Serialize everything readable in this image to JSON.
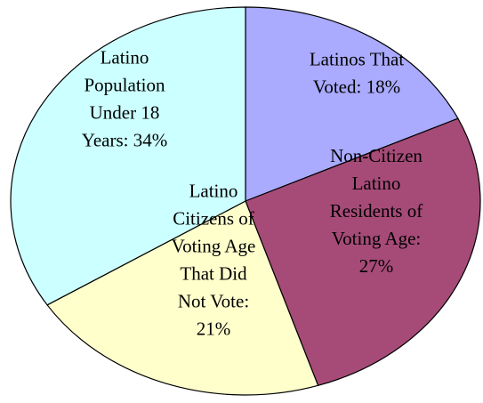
{
  "chart_data": {
    "type": "pie",
    "start_angle_deg": 0,
    "direction": "clockwise",
    "slices": [
      {
        "label_lines": [
          "Latinos That",
          "Voted: 18%"
        ],
        "value": 18,
        "color": "#aaaaff"
      },
      {
        "label_lines": [
          "Non-Citizen",
          "Latino",
          "Residents of",
          "Voting Age:",
          "27%"
        ],
        "value": 27,
        "color": "#a64b78"
      },
      {
        "label_lines": [
          "Latino",
          "Citizens of",
          "Voting Age",
          "That Did",
          "Not Vote:",
          "21%"
        ],
        "value": 21,
        "color": "#ffffcc"
      },
      {
        "label_lines": [
          "Latino",
          "Population",
          "Under 18",
          "Years: 34%"
        ],
        "value": 34,
        "color": "#ccffff"
      }
    ]
  }
}
